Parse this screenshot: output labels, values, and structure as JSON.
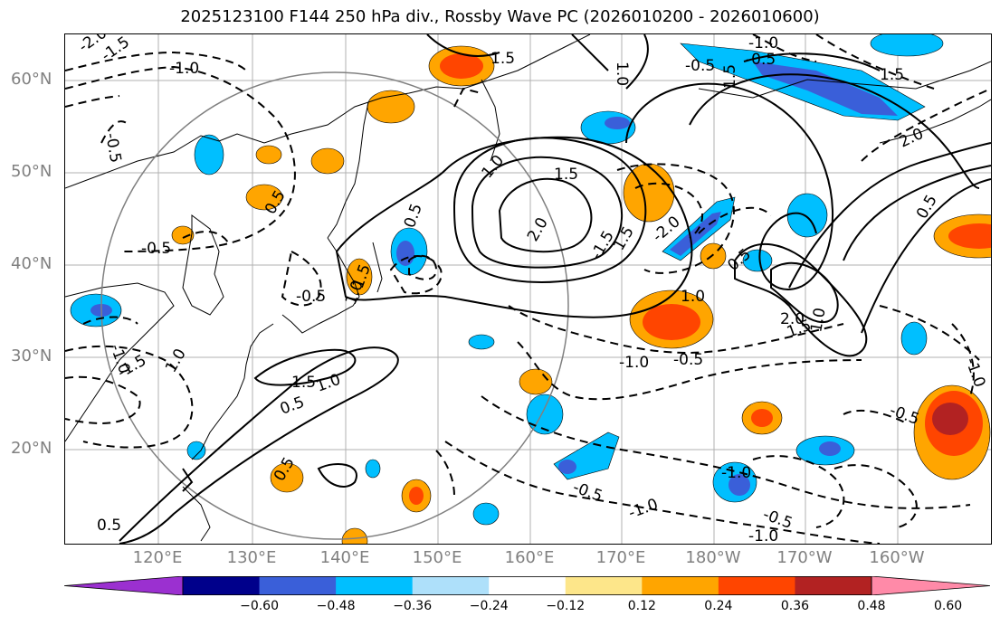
{
  "title": "2025123100 F144 250 hPa div., Rossby Wave PC (2026010200 - 2026010600)",
  "lat_labels": [
    "60°N",
    "50°N",
    "40°N",
    "30°N",
    "20°N"
  ],
  "lon_labels": [
    "120°E",
    "130°E",
    "140°E",
    "150°E",
    "160°E",
    "170°E",
    "180°W",
    "170°W",
    "160°W"
  ],
  "colorbar": {
    "colors": [
      "#9b30d0",
      "#00008b",
      "#3a5fd9",
      "#00bfff",
      "#aee0fa",
      "#ffffff",
      "#fde68a",
      "#ffa500",
      "#ff4500",
      "#b22222",
      "#ff8aa8"
    ],
    "ticks": [
      "−0.60",
      "−0.48",
      "−0.36",
      "−0.24",
      "−0.12",
      "0.12",
      "0.24",
      "0.36",
      "0.48",
      "0.60"
    ]
  },
  "contour_labels": [
    "2.0",
    "1.5",
    "1.0",
    "0.5",
    "-0.5",
    "-1.0",
    "-1.5",
    "-2.0"
  ]
}
